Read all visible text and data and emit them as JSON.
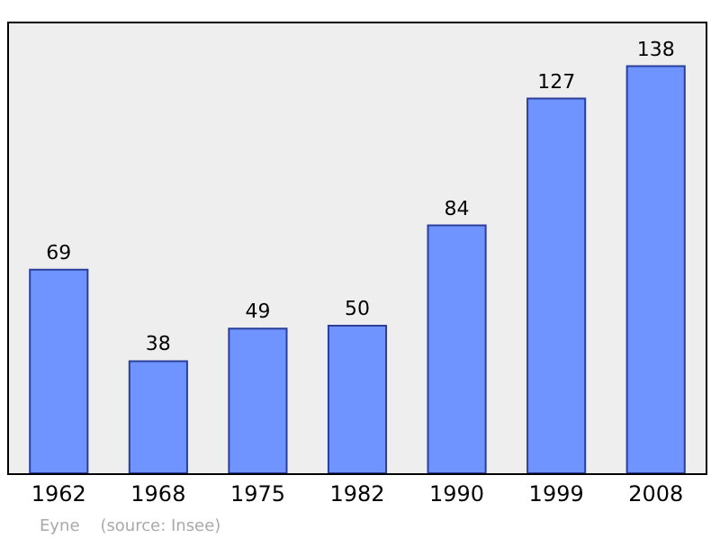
{
  "chart_data": {
    "type": "bar",
    "categories": [
      "1962",
      "1968",
      "1975",
      "1982",
      "1990",
      "1999",
      "2008"
    ],
    "values": [
      69,
      38,
      49,
      50,
      84,
      127,
      138
    ],
    "color": "#7094ff",
    "data_labels": true,
    "grid": false,
    "legend": false,
    "annotations": [
      "Eyne    (source: Insee)"
    ]
  }
}
